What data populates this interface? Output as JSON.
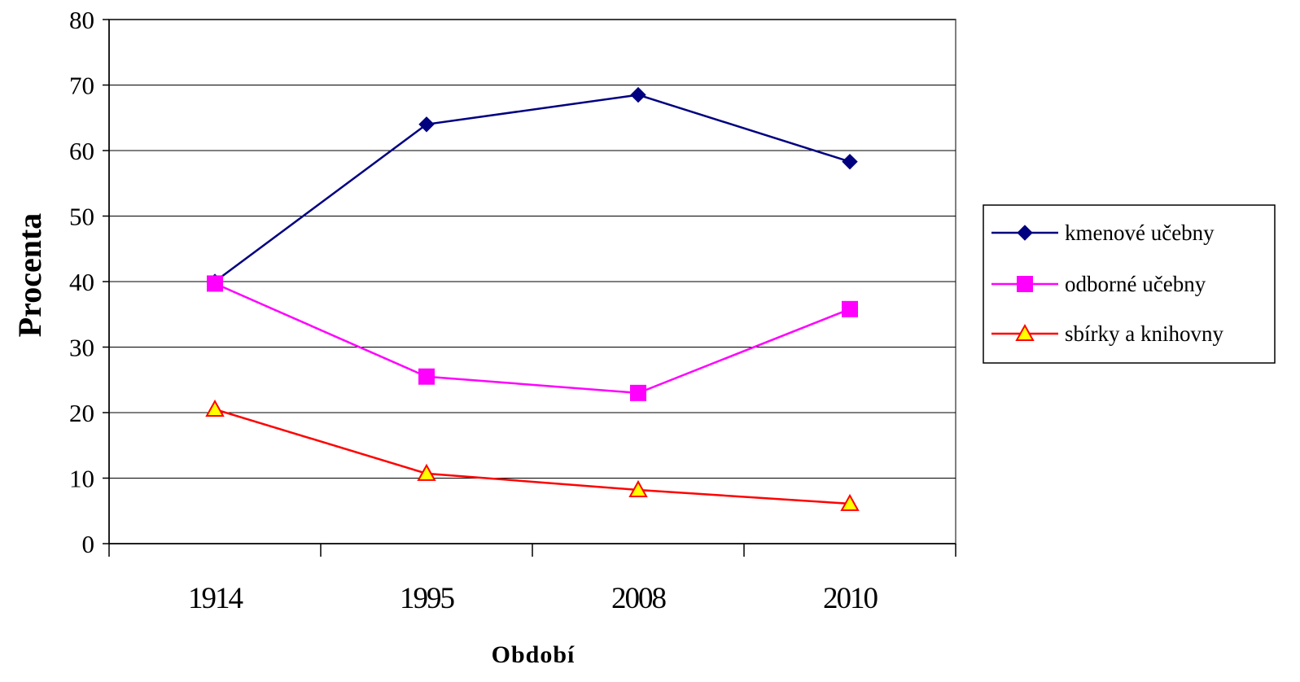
{
  "chart_data": {
    "type": "line",
    "title": "",
    "xlabel": "Období",
    "ylabel": "Procenta",
    "categories": [
      "1914",
      "1995",
      "2008",
      "2010"
    ],
    "ylim": [
      0,
      80
    ],
    "yticks": [
      0,
      10,
      20,
      30,
      40,
      50,
      60,
      70,
      80
    ],
    "grid": "horizontal",
    "legend_position": "right",
    "series": [
      {
        "name": "kmenové učebny",
        "values": [
          40,
          64,
          68.5,
          58.3
        ],
        "color": "#000080",
        "marker": "diamond"
      },
      {
        "name": "odborné učebny",
        "values": [
          39.7,
          25.5,
          23,
          35.8
        ],
        "color": "#ff00ff",
        "marker": "square"
      },
      {
        "name": "sbírky a knihovny",
        "values": [
          20.5,
          10.7,
          8.2,
          6.1
        ],
        "color": "#ff0000",
        "marker": "triangle",
        "marker_fill": "#ffff00"
      }
    ]
  }
}
